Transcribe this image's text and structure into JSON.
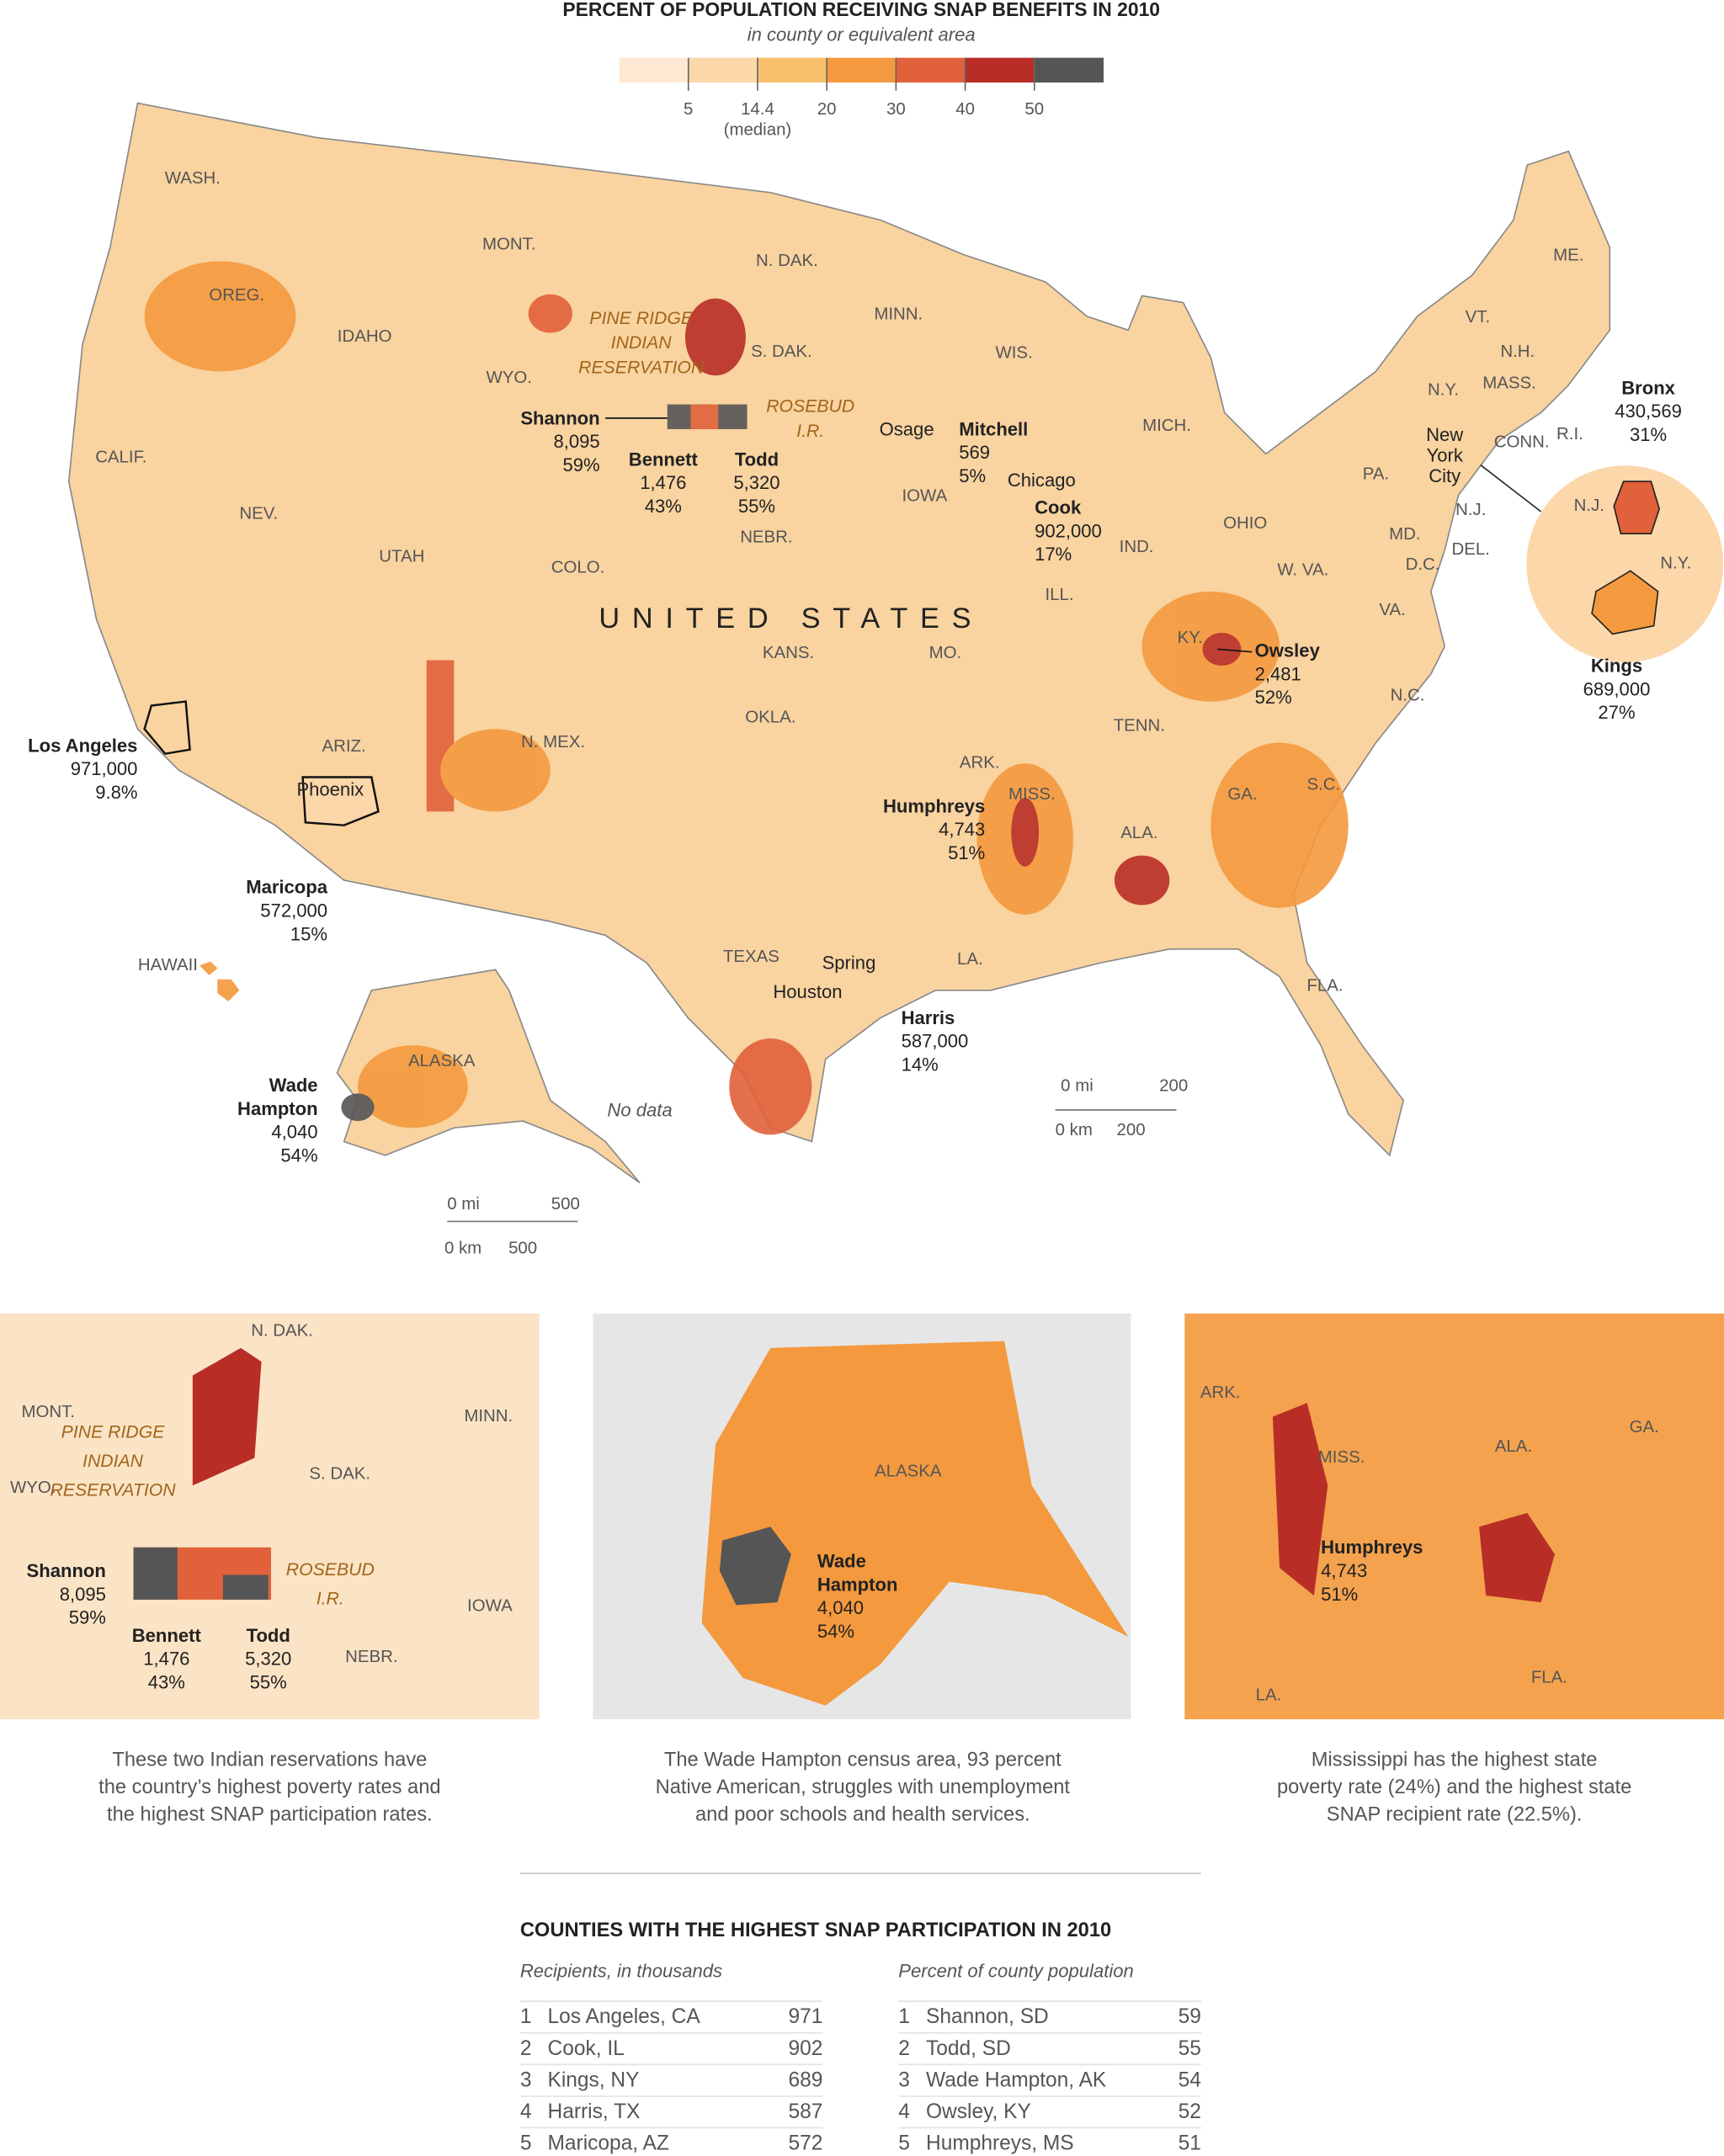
{
  "header": {
    "title": "PERCENT OF POPULATION RECEIVING SNAP BENEFITS IN 2010",
    "subtitle": "in county or equivalent area"
  },
  "legend": {
    "ticks": [
      5,
      14.4,
      20,
      30,
      40,
      50
    ],
    "median_note": "(median)",
    "colors": [
      "#fde9d3",
      "#fbd7aa",
      "#f8c06b",
      "#f4993e",
      "#e0613a",
      "#b82e26",
      "#555555"
    ]
  },
  "map": {
    "country_label": "UNITED STATES",
    "state_labels": [
      "WASH.",
      "MONT.",
      "OREG.",
      "IDAHO",
      "WYO.",
      "N. DAK.",
      "S. DAK.",
      "MINN.",
      "WIS.",
      "MICH.",
      "IOWA",
      "NEBR.",
      "CALIF.",
      "NEV.",
      "UTAH",
      "COLO.",
      "KANS.",
      "MO.",
      "ILL.",
      "IND.",
      "OHIO",
      "PA.",
      "N.Y.",
      "VT.",
      "N.H.",
      "MASS.",
      "ME.",
      "CONN.",
      "R.I.",
      "N.J.",
      "DEL.",
      "MD.",
      "D.C.",
      "W. VA.",
      "VA.",
      "KY.",
      "TENN.",
      "N.C.",
      "S.C.",
      "GA.",
      "ALA.",
      "MISS.",
      "ARK.",
      "LA.",
      "FLA.",
      "TEXAS",
      "OKLA.",
      "N. MEX.",
      "ARIZ.",
      "HAWAII",
      "ALASKA",
      "N.J.",
      "N.Y."
    ],
    "places": [
      "Osage",
      "Chicago",
      "Phoenix",
      "Houston",
      "Spring"
    ],
    "nyc": [
      "New",
      "York",
      "City"
    ],
    "reservations": [
      [
        "PINE RIDGE",
        "INDIAN",
        "RESERVATION"
      ],
      [
        "ROSEBUD",
        "I.R."
      ]
    ],
    "callouts": [
      {
        "name": [
          "Shannon"
        ],
        "count": "8,095",
        "percent": "59%"
      },
      {
        "name": [
          "Bennett"
        ],
        "count": "1,476",
        "percent": "43%"
      },
      {
        "name": [
          "Todd"
        ],
        "count": "5,320",
        "percent": "55%"
      },
      {
        "name": [
          "Mitchell"
        ],
        "count": "569",
        "percent": "5%"
      },
      {
        "name": [
          "Cook"
        ],
        "count": "902,000",
        "percent": "17%"
      },
      {
        "name": [
          "Owsley"
        ],
        "count": "2,481",
        "percent": "52%"
      },
      {
        "name": [
          "Humphreys"
        ],
        "count": "4,743",
        "percent": "51%"
      },
      {
        "name": [
          "Los Angeles"
        ],
        "count": "971,000",
        "percent": "9.8%"
      },
      {
        "name": [
          "Maricopa"
        ],
        "count": "572,000",
        "percent": "15%"
      },
      {
        "name": [
          "Harris"
        ],
        "count": "587,000",
        "percent": "14%"
      },
      {
        "name": [
          "Wade",
          "Hampton"
        ],
        "count": "4,040",
        "percent": "54%"
      },
      {
        "name": [
          "Bronx"
        ],
        "count": "430,569",
        "percent": "31%"
      },
      {
        "name": [
          "Kings"
        ],
        "count": "689,000",
        "percent": "27%"
      }
    ],
    "no_data": "No data",
    "scale_labels": [
      "0 mi",
      "200",
      "0 km",
      "200",
      "0 mi",
      "500",
      "0 km",
      "500"
    ]
  },
  "insets": [
    {
      "labels": [
        "N. DAK.",
        "MONT.",
        "MINN.",
        "WYO.",
        "S. DAK.",
        "IOWA",
        "NEBR."
      ],
      "reservations": [
        [
          "PINE RIDGE",
          "INDIAN",
          "RESERVATION"
        ],
        [
          "ROSEBUD",
          "I.R."
        ]
      ],
      "callouts": [
        {
          "name": [
            "Shannon"
          ],
          "count": "8,095",
          "percent": "59%"
        },
        {
          "name": [
            "Bennett"
          ],
          "count": "1,476",
          "percent": "43%"
        },
        {
          "name": [
            "Todd"
          ],
          "count": "5,320",
          "percent": "55%"
        }
      ],
      "caption": [
        "These two Indian reservations have",
        "the country’s highest poverty rates and",
        "the highest SNAP participation rates."
      ]
    },
    {
      "labels": [
        "ALASKA"
      ],
      "reservations": [],
      "callouts": [
        {
          "name": [
            "Wade",
            "Hampton"
          ],
          "count": "4,040",
          "percent": "54%"
        }
      ],
      "caption": [
        "The Wade Hampton census area, 93 percent",
        "Native American, struggles with unemployment",
        "and poor schools and health services."
      ]
    },
    {
      "labels": [
        "ARK.",
        "MISS.",
        "ALA.",
        "GA.",
        "LA.",
        "FLA."
      ],
      "reservations": [],
      "callouts": [
        {
          "name": [
            "Humphreys"
          ],
          "count": "4,743",
          "percent": "51%"
        }
      ],
      "caption": [
        "Mississippi has the highest state",
        "poverty rate (24%) and the highest state",
        "SNAP recipient rate (22.5%)."
      ]
    }
  ],
  "table": {
    "title": "COUNTIES WITH THE HIGHEST SNAP PARTICIPATION IN 2010",
    "left_header": "Recipients, in thousands",
    "right_header": "Percent of county population",
    "left_rows": [
      [
        1,
        "Los Angeles, CA",
        971
      ],
      [
        2,
        "Cook, IL",
        902
      ],
      [
        3,
        "Kings, NY",
        689
      ],
      [
        4,
        "Harris, TX",
        587
      ],
      [
        5,
        "Maricopa, AZ",
        572
      ]
    ],
    "right_rows": [
      [
        1,
        "Shannon, SD",
        59
      ],
      [
        2,
        "Todd, SD",
        55
      ],
      [
        3,
        "Wade Hampton, AK",
        54
      ],
      [
        4,
        "Owsley, KY",
        52
      ],
      [
        5,
        "Humphreys, MS",
        51
      ]
    ]
  }
}
